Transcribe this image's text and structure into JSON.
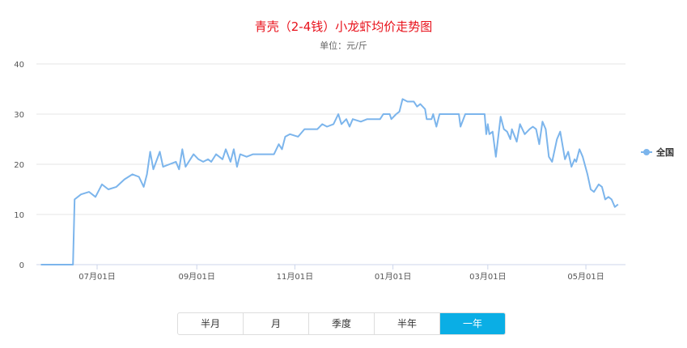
{
  "chart_data": {
    "type": "line",
    "title": "青壳（2-4钱）小龙虾均价走势图",
    "subtitle": "单位：元/斤",
    "ylim": [
      0,
      40
    ],
    "yticks": [
      "0",
      "10",
      "20",
      "30",
      "40"
    ],
    "xticks": [
      "07月01日",
      "09月01日",
      "11月01日",
      "01月01日",
      "03月01日",
      "05月01日"
    ],
    "grid": true,
    "legend_position": "right",
    "series": [
      {
        "name": "全国",
        "color": "#7cb5ec",
        "points": [
          [
            "05-27",
            0
          ],
          [
            "06-16",
            0
          ],
          [
            "06-17",
            13
          ],
          [
            "06-21",
            14
          ],
          [
            "06-26",
            14.5
          ],
          [
            "06-30",
            13.5
          ],
          [
            "07-04",
            16
          ],
          [
            "07-08",
            15
          ],
          [
            "07-13",
            15.5
          ],
          [
            "07-18",
            17
          ],
          [
            "07-23",
            18
          ],
          [
            "07-27",
            17.5
          ],
          [
            "07-30",
            15.5
          ],
          [
            "08-01",
            18
          ],
          [
            "08-03",
            22.5
          ],
          [
            "08-05",
            19
          ],
          [
            "08-09",
            22.5
          ],
          [
            "08-11",
            19.5
          ],
          [
            "08-15",
            20
          ],
          [
            "08-19",
            20.5
          ],
          [
            "08-21",
            19
          ],
          [
            "08-23",
            23
          ],
          [
            "08-25",
            19.5
          ],
          [
            "08-28",
            21
          ],
          [
            "08-30",
            22
          ],
          [
            "09-02",
            21
          ],
          [
            "09-05",
            20.5
          ],
          [
            "09-08",
            21
          ],
          [
            "09-10",
            20.5
          ],
          [
            "09-13",
            22
          ],
          [
            "09-17",
            21
          ],
          [
            "09-19",
            23
          ],
          [
            "09-22",
            20.5
          ],
          [
            "09-24",
            23
          ],
          [
            "09-26",
            19.5
          ],
          [
            "09-28",
            22
          ],
          [
            "10-02",
            21.5
          ],
          [
            "10-06",
            22
          ],
          [
            "10-12",
            22
          ],
          [
            "10-19",
            22
          ],
          [
            "10-22",
            24
          ],
          [
            "10-24",
            23
          ],
          [
            "10-26",
            25.5
          ],
          [
            "10-29",
            26
          ],
          [
            "11-03",
            25.5
          ],
          [
            "11-07",
            27
          ],
          [
            "11-15",
            27
          ],
          [
            "11-18",
            28
          ],
          [
            "11-21",
            27.5
          ],
          [
            "11-25",
            28
          ],
          [
            "11-28",
            30
          ],
          [
            "11-30",
            28
          ],
          [
            "12-03",
            29
          ],
          [
            "12-05",
            27.5
          ],
          [
            "12-07",
            29
          ],
          [
            "12-12",
            28.5
          ],
          [
            "12-16",
            29
          ],
          [
            "12-24",
            29
          ],
          [
            "12-26",
            30
          ],
          [
            "12-30",
            30
          ],
          [
            "12-31",
            29
          ],
          [
            "01-03",
            30
          ],
          [
            "01-05",
            30.5
          ],
          [
            "01-07",
            33
          ],
          [
            "01-10",
            32.5
          ],
          [
            "01-14",
            32.5
          ],
          [
            "01-16",
            31.5
          ],
          [
            "01-18",
            32
          ],
          [
            "01-21",
            31
          ],
          [
            "01-22",
            29
          ],
          [
            "01-25",
            29
          ],
          [
            "01-26",
            30
          ],
          [
            "01-28",
            27.5
          ],
          [
            "01-30",
            30
          ],
          [
            "02-11",
            30
          ],
          [
            "02-12",
            27.5
          ],
          [
            "02-15",
            30
          ],
          [
            "02-27",
            30
          ],
          [
            "02-28",
            26
          ],
          [
            "03-01",
            28
          ],
          [
            "03-02",
            26
          ],
          [
            "03-04",
            26.5
          ],
          [
            "03-06",
            21.5
          ],
          [
            "03-09",
            29.5
          ],
          [
            "03-11",
            27
          ],
          [
            "03-13",
            26.5
          ],
          [
            "03-15",
            25
          ],
          [
            "03-16",
            27
          ],
          [
            "03-19",
            24.5
          ],
          [
            "03-21",
            28
          ],
          [
            "03-24",
            26
          ],
          [
            "03-27",
            27
          ],
          [
            "03-29",
            27.5
          ],
          [
            "03-31",
            27
          ],
          [
            "04-02",
            24
          ],
          [
            "04-04",
            28.5
          ],
          [
            "04-06",
            27
          ],
          [
            "04-08",
            21.5
          ],
          [
            "04-10",
            20.5
          ],
          [
            "04-13",
            25
          ],
          [
            "04-15",
            26.5
          ],
          [
            "04-18",
            21
          ],
          [
            "04-20",
            22.5
          ],
          [
            "04-22",
            19.5
          ],
          [
            "04-24",
            21
          ],
          [
            "04-25",
            20.5
          ],
          [
            "04-27",
            23
          ],
          [
            "04-29",
            21.5
          ],
          [
            "05-02",
            18
          ],
          [
            "05-04",
            15
          ],
          [
            "05-06",
            14.5
          ],
          [
            "05-09",
            16
          ],
          [
            "05-11",
            15.5
          ],
          [
            "05-13",
            13
          ],
          [
            "05-15",
            13.5
          ],
          [
            "05-17",
            13
          ],
          [
            "05-19",
            11.5
          ],
          [
            "05-21",
            12
          ]
        ]
      }
    ]
  },
  "range_buttons": [
    "半月",
    "月",
    "季度",
    "半年",
    "一年"
  ],
  "active_range": "一年"
}
